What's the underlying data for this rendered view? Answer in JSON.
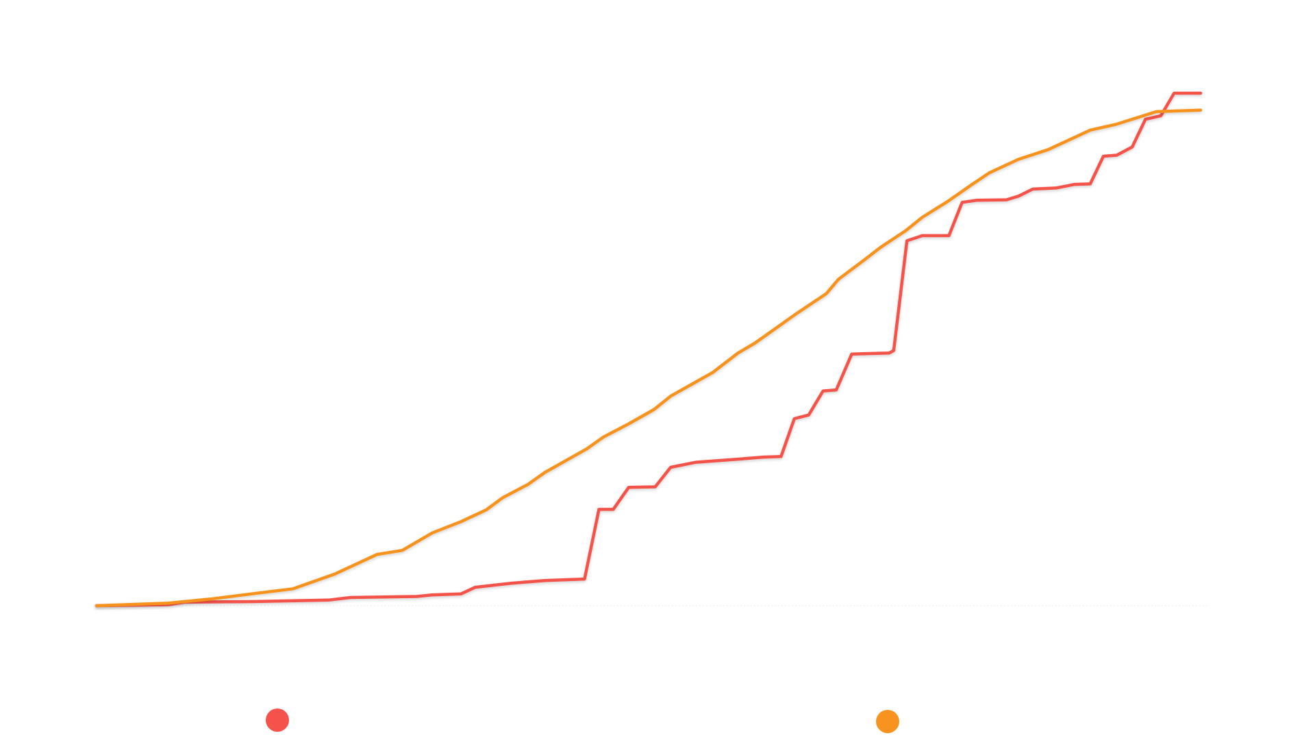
{
  "chart_data": {
    "type": "line",
    "series": [
      {
        "color": "#f4524a",
        "x": [
          0,
          6.5,
          8,
          14,
          21,
          23,
          29,
          30.4,
          33,
          34.3,
          37.6,
          40.6,
          44.2,
          45.5,
          46.8,
          48.2,
          50.6,
          52,
          54.3,
          58.1,
          60.4,
          62,
          63.2,
          64.5,
          65.8,
          67,
          68.4,
          71.8,
          72.2,
          73.4,
          74.8,
          77.2,
          78.4,
          79.7,
          82.4,
          83.5,
          84.8,
          86.9,
          88.6,
          90,
          91.2,
          92.4,
          93.8,
          95,
          96.4,
          97.6,
          100
        ],
        "values": [
          0,
          0.2,
          0.7,
          0.8,
          1.1,
          1.6,
          1.8,
          2.1,
          2.3,
          3.6,
          4.4,
          4.9,
          5.2,
          18.8,
          18.8,
          23.1,
          23.2,
          27,
          28,
          28.6,
          29,
          29.1,
          36.5,
          37.2,
          41.9,
          42.1,
          49.1,
          49.3,
          49.8,
          71.2,
          72.2,
          72.2,
          78.7,
          79.1,
          79.2,
          79.9,
          81.3,
          81.5,
          82.2,
          82.3,
          87.7,
          87.9,
          89.5,
          94.9,
          95.6,
          100,
          100
        ]
      },
      {
        "color": "#f7931e",
        "x": [
          0,
          6.5,
          10.3,
          14,
          17.8,
          21.6,
          25.4,
          27.7,
          30.4,
          33,
          35.3,
          36.8,
          39.1,
          40.6,
          44.4,
          45.9,
          48.2,
          50.5,
          52,
          55.8,
          58.1,
          59.6,
          63.4,
          66.1,
          67.2,
          69.5,
          71,
          73.3,
          74.8,
          77.1,
          79.3,
          80.9,
          83.5,
          86.2,
          90,
          92.3,
          96,
          100
        ],
        "values": [
          0,
          0.5,
          1.3,
          2.3,
          3.3,
          6.2,
          10,
          10.8,
          14.2,
          16.4,
          18.7,
          21.1,
          23.7,
          26,
          30.6,
          32.9,
          35.5,
          38.3,
          40.9,
          45.5,
          49.3,
          51.2,
          57,
          60.9,
          63.7,
          67.4,
          69.9,
          73.2,
          75.8,
          78.9,
          82.2,
          84.5,
          87.1,
          89,
          92.8,
          93.9,
          96.4,
          96.7
        ]
      }
    ]
  }
}
